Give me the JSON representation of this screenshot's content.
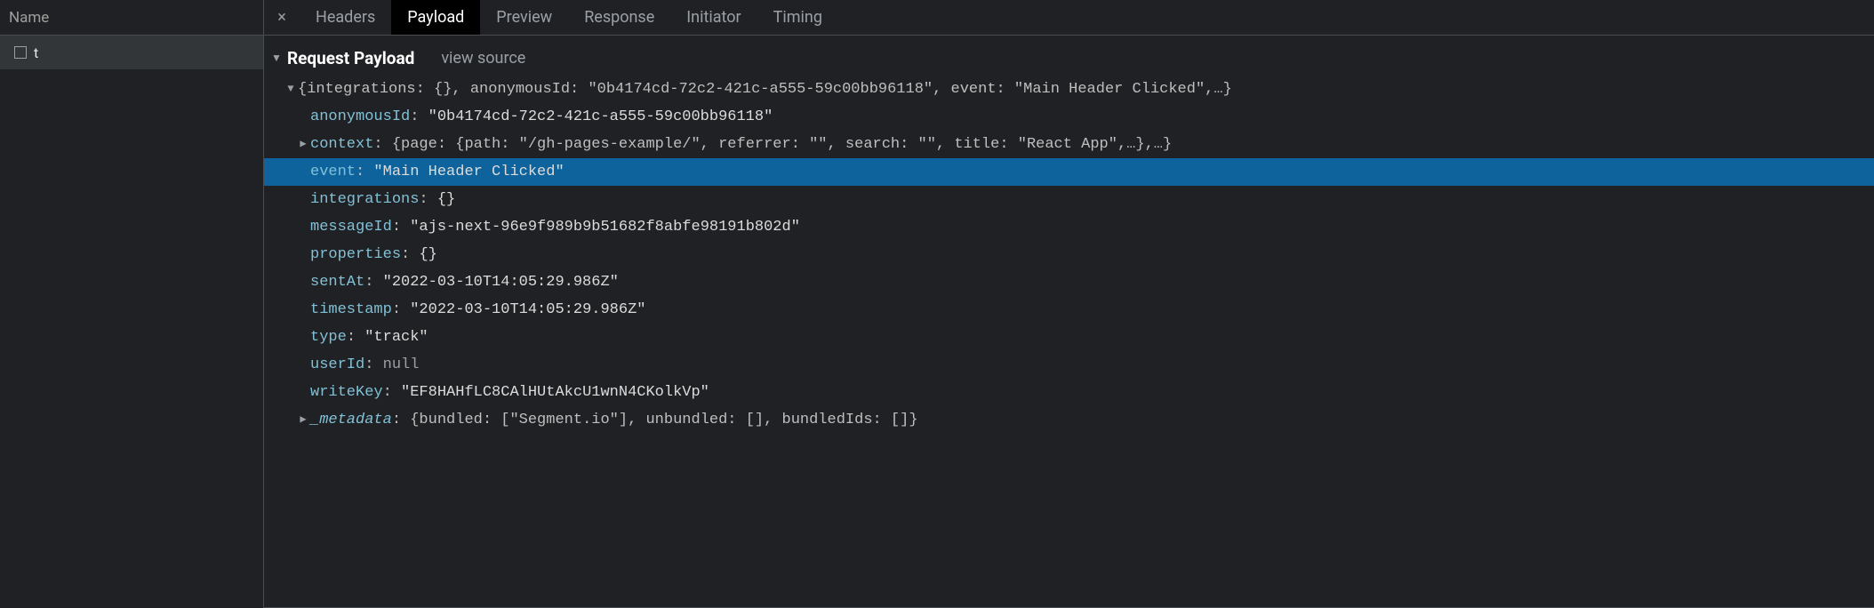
{
  "sidebar": {
    "header": "Name",
    "items": [
      {
        "label": "t"
      }
    ]
  },
  "tabs": {
    "items": [
      {
        "label": "Headers",
        "active": false
      },
      {
        "label": "Payload",
        "active": true
      },
      {
        "label": "Preview",
        "active": false
      },
      {
        "label": "Response",
        "active": false
      },
      {
        "label": "Initiator",
        "active": false
      },
      {
        "label": "Timing",
        "active": false
      }
    ]
  },
  "section": {
    "title": "Request Payload",
    "viewSource": "view source"
  },
  "payload": {
    "summary": "{integrations: {}, anonymousId: \"0b4174cd-72c2-421c-a555-59c00bb96118\", event: \"Main Header Clicked\",…}",
    "anonymousId": {
      "key": "anonymousId",
      "value": "\"0b4174cd-72c2-421c-a555-59c00bb96118\""
    },
    "context": {
      "key": "context",
      "summary": "{page: {path: \"/gh-pages-example/\", referrer: \"\", search: \"\", title: \"React App\",…},…}"
    },
    "event": {
      "key": "event",
      "value": "\"Main Header Clicked\""
    },
    "integrations": {
      "key": "integrations",
      "value": "{}"
    },
    "messageId": {
      "key": "messageId",
      "value": "\"ajs-next-96e9f989b9b51682f8abfe98191b802d\""
    },
    "properties": {
      "key": "properties",
      "value": "{}"
    },
    "sentAt": {
      "key": "sentAt",
      "value": "\"2022-03-10T14:05:29.986Z\""
    },
    "timestamp": {
      "key": "timestamp",
      "value": "\"2022-03-10T14:05:29.986Z\""
    },
    "type": {
      "key": "type",
      "value": "\"track\""
    },
    "userId": {
      "key": "userId",
      "value": "null"
    },
    "writeKey": {
      "key": "writeKey",
      "value": "\"EF8HAHfLC8CAlHUtAkcU1wnN4CKolkVp\""
    },
    "metadata": {
      "key": "_metadata",
      "summary": "{bundled: [\"Segment.io\"], unbundled: [], bundledIds: []}"
    }
  },
  "colors": {
    "background": "#202124",
    "panel": "#333639",
    "border": "#494c50",
    "tabActiveBg": "#000000",
    "tabActiveFg": "#ffffff",
    "tabInactiveFg": "#9aa0a6",
    "key": "#81c1d7",
    "string": "#dcdcdc",
    "null": "#9aa0a6",
    "highlight": "#0f639c"
  }
}
